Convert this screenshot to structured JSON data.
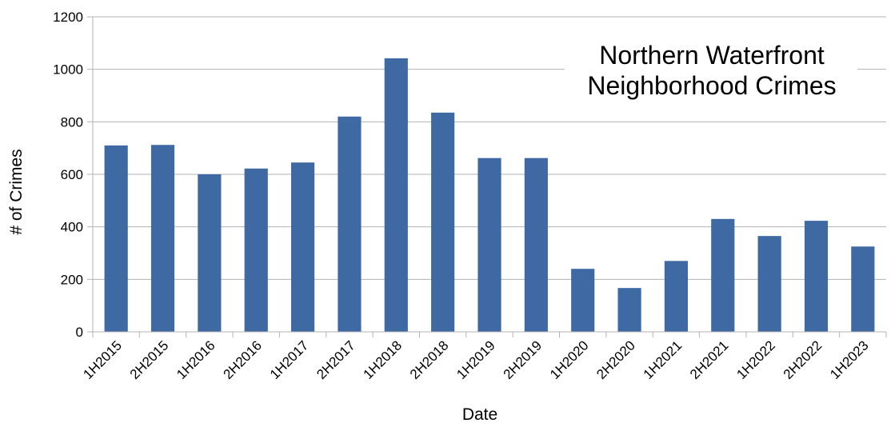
{
  "chart_data": {
    "type": "bar",
    "title": [
      "Northern Waterfront",
      "Neighborhood Crimes"
    ],
    "xlabel": "Date",
    "ylabel": "# of Crimes",
    "categories": [
      "1H2015",
      "2H2015",
      "1H2016",
      "2H2016",
      "1H2017",
      "2H2017",
      "1H2018",
      "2H2018",
      "1H2019",
      "2H2019",
      "1H2020",
      "2H2020",
      "1H2021",
      "2H2021",
      "1H2022",
      "2H2022",
      "1H2023"
    ],
    "values": [
      710,
      712,
      600,
      622,
      645,
      820,
      1042,
      835,
      662,
      662,
      240,
      167,
      270,
      430,
      365,
      423,
      325
    ],
    "ylim": [
      0,
      1200
    ],
    "yticks": [
      0,
      200,
      400,
      600,
      800,
      1000,
      1200
    ],
    "grid": true,
    "legend": "none",
    "bar_color": "#3e69a3",
    "grid_color": "#b3b3b3",
    "axis_color": "#b3b3b3"
  }
}
